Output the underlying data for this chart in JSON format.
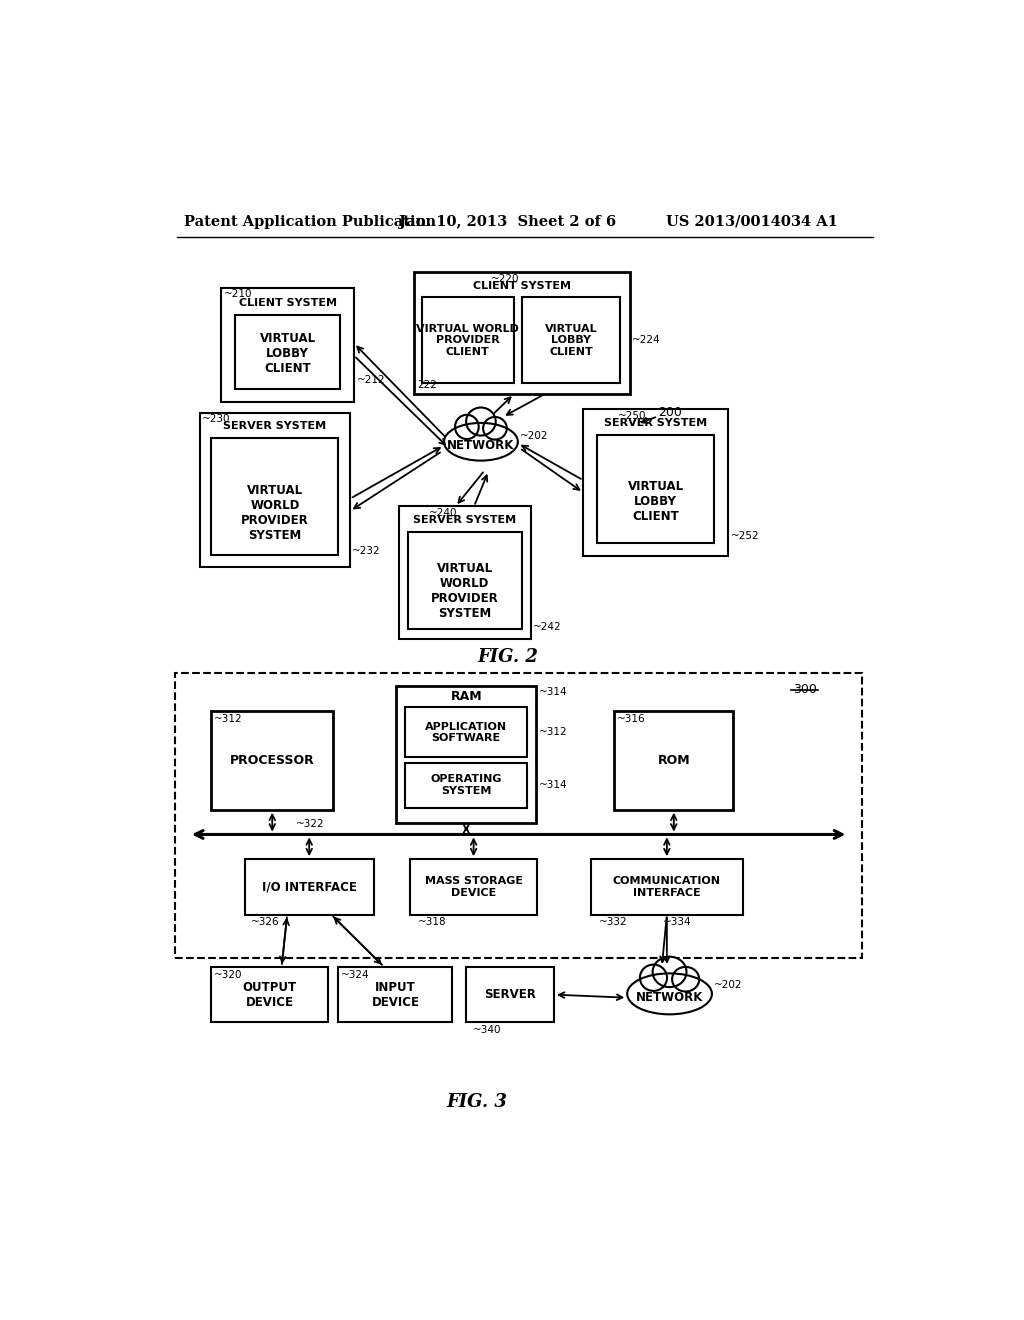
{
  "header_left": "Patent Application Publication",
  "header_center": "Jan. 10, 2013  Sheet 2 of 6",
  "header_right": "US 2013/0014034 A1",
  "fig2_label": "FIG. 2",
  "fig3_label": "FIG. 3",
  "background": "#ffffff"
}
